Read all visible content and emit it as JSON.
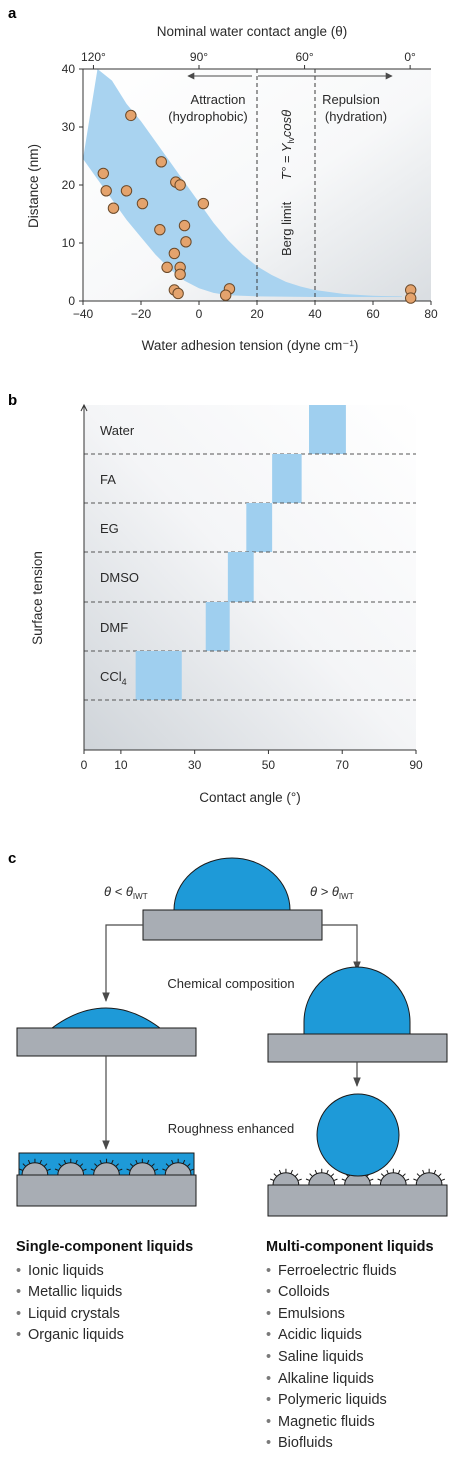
{
  "colors": {
    "band": "#a9d3f0",
    "bar": "#9fcfef",
    "drop": "#1e9ad8",
    "point_fill": "#e4a36d",
    "point_stroke": "#6b4a2a",
    "substrate": "#a8adb4"
  },
  "panel_labels": [
    "a",
    "b",
    "c"
  ],
  "chart_data": [
    {
      "type": "scatter",
      "xlabel": "Water adhesion tension (dyne cm⁻¹)",
      "ylabel": "Distance (nm)",
      "top_axis_label": "Nominal water contact angle (θ)",
      "xlim": [
        -40,
        80
      ],
      "ylim": [
        0,
        40
      ],
      "x_ticks": [
        -40,
        -20,
        0,
        20,
        40,
        60,
        80
      ],
      "x_tick_labels": [
        "−40",
        "−20",
        "0",
        "20",
        "40",
        "60",
        "80"
      ],
      "y_ticks": [
        0,
        10,
        20,
        30,
        40
      ],
      "top_ticks": [
        {
          "label": "120°",
          "at": -36.4
        },
        {
          "label": "90°",
          "at": 0
        },
        {
          "label": "60°",
          "at": 36.4
        },
        {
          "label": "0°",
          "at": 72.8
        }
      ],
      "points": [
        {
          "x": -23.5,
          "y": 32
        },
        {
          "x": -33,
          "y": 22
        },
        {
          "x": -32,
          "y": 19
        },
        {
          "x": -25,
          "y": 19
        },
        {
          "x": -29.5,
          "y": 16
        },
        {
          "x": -13,
          "y": 24
        },
        {
          "x": -8,
          "y": 20.5
        },
        {
          "x": -6.5,
          "y": 20
        },
        {
          "x": -19.5,
          "y": 16.8
        },
        {
          "x": 1.5,
          "y": 16.8
        },
        {
          "x": -5,
          "y": 13
        },
        {
          "x": -13.5,
          "y": 12.3
        },
        {
          "x": -4.5,
          "y": 10.2
        },
        {
          "x": -8.5,
          "y": 8.2
        },
        {
          "x": -11,
          "y": 5.8
        },
        {
          "x": -6.5,
          "y": 5.8
        },
        {
          "x": -6.5,
          "y": 4.6
        },
        {
          "x": -8.5,
          "y": 1.9
        },
        {
          "x": -7.2,
          "y": 1.3
        },
        {
          "x": 10.5,
          "y": 2.1
        },
        {
          "x": 9.2,
          "y": 1.0
        },
        {
          "x": 73,
          "y": 1.9
        },
        {
          "x": 73,
          "y": 0.5
        }
      ],
      "band_upper": [
        [
          -35,
          40
        ],
        [
          -30,
          38
        ],
        [
          -25,
          34
        ],
        [
          -20,
          31
        ],
        [
          -15,
          27.5
        ],
        [
          -10,
          24
        ],
        [
          -5,
          20.5
        ],
        [
          0,
          17
        ],
        [
          5,
          13.5
        ],
        [
          10,
          10.5
        ],
        [
          15,
          8
        ],
        [
          20,
          6
        ],
        [
          25,
          4.5
        ],
        [
          30,
          3.3
        ],
        [
          35,
          2.5
        ],
        [
          40,
          1.9
        ],
        [
          50,
          1.2
        ],
        [
          60,
          0.9
        ],
        [
          70,
          0.8
        ]
      ],
      "band_lower": [
        [
          -40,
          24.5
        ],
        [
          -35,
          21
        ],
        [
          -30,
          17.5
        ],
        [
          -25,
          14
        ],
        [
          -20,
          11
        ],
        [
          -15,
          8
        ],
        [
          -10,
          5.5
        ],
        [
          -5,
          3.5
        ],
        [
          0,
          2.2
        ],
        [
          5,
          1.4
        ],
        [
          10,
          1
        ],
        [
          20,
          0.8
        ],
        [
          40,
          0.7
        ],
        [
          70,
          0.7
        ]
      ],
      "berg_limit_x": 20,
      "berg_limit_x2": 40,
      "annotations": {
        "attraction": "Attraction",
        "attraction_sub": "(hydrophobic)",
        "repulsion": "Repulsion",
        "repulsion_sub": "(hydration)",
        "berg": "Berg limit",
        "formula": "T° = Y",
        "formula_sub": "lv",
        "formula_tail": "cosθ"
      }
    },
    {
      "type": "bar",
      "xlabel": "Contact angle (°)",
      "ylabel": "Surface tension",
      "xlim": [
        0,
        90
      ],
      "x_ticks": [
        0,
        10,
        30,
        50,
        70,
        90
      ],
      "rows": [
        {
          "label": "Water",
          "range": [
            61,
            71
          ]
        },
        {
          "label": "FA",
          "range": [
            51,
            59
          ]
        },
        {
          "label": "EG",
          "range": [
            44,
            51
          ]
        },
        {
          "label": "DMSO",
          "range": [
            39,
            46
          ]
        },
        {
          "label": "DMF",
          "range": [
            33,
            39.5
          ]
        },
        {
          "label": "CCl",
          "label_sub": "4",
          "range": [
            14,
            26.5
          ]
        }
      ]
    }
  ],
  "panel_c": {
    "left_condition": "θ < θ",
    "left_condition_sub": "IWT",
    "right_condition": "θ > θ",
    "right_condition_sub": "IWT",
    "chemical_composition": "Chemical composition",
    "roughness_enhanced": "Roughness enhanced"
  },
  "lists": {
    "single_title": "Single-component liquids",
    "single_items": [
      "Ionic liquids",
      "Metallic liquids",
      "Liquid crystals",
      "Organic liquids"
    ],
    "multi_title": "Multi-component liquids",
    "multi_items": [
      "Ferroelectric fluids",
      "Colloids",
      "Emulsions",
      "Acidic liquids",
      "Saline liquids",
      "Alkaline liquids",
      "Polymeric liquids",
      "Magnetic fluids",
      "Biofluids"
    ]
  }
}
